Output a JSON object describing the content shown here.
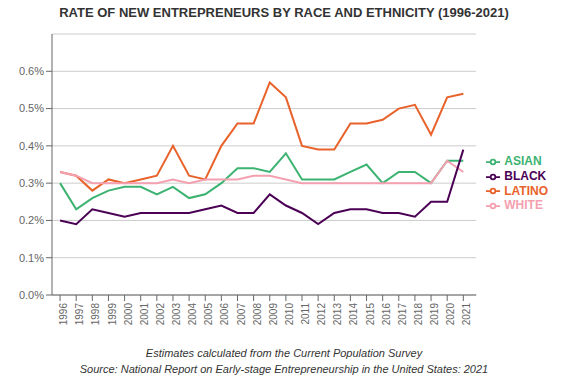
{
  "chart_data": {
    "type": "line",
    "title": "RATE OF NEW ENTREPRENEURS BY RACE AND ETHNICITY (1996-2021)",
    "x": [
      1996,
      1997,
      1998,
      1999,
      2000,
      2001,
      2002,
      2003,
      2004,
      2005,
      2006,
      2007,
      2008,
      2009,
      2010,
      2011,
      2012,
      2013,
      2014,
      2015,
      2016,
      2017,
      2018,
      2019,
      2020,
      2021
    ],
    "series": [
      {
        "name": "LATINO",
        "color": "#E8622A",
        "values": [
          0.0033,
          0.0032,
          0.0028,
          0.0031,
          0.003,
          0.0031,
          0.0032,
          0.004,
          0.0032,
          0.0031,
          0.004,
          0.0046,
          0.0046,
          0.0057,
          0.0053,
          0.004,
          0.0039,
          0.0039,
          0.0046,
          0.0046,
          0.0047,
          0.005,
          0.0051,
          0.0043,
          0.0053,
          0.0054
        ]
      },
      {
        "name": "ASIAN",
        "color": "#3CB371",
        "values": [
          0.003,
          0.0023,
          0.0026,
          0.0028,
          0.0029,
          0.0029,
          0.0027,
          0.0029,
          0.0026,
          0.0027,
          0.003,
          0.0034,
          0.0034,
          0.0033,
          0.0038,
          0.0031,
          0.0031,
          0.0031,
          0.0033,
          0.0035,
          0.003,
          0.0033,
          0.0033,
          0.003,
          0.0036,
          0.0036
        ]
      },
      {
        "name": "WHITE",
        "color": "#F4A0B0",
        "values": [
          0.0033,
          0.0032,
          0.003,
          0.003,
          0.003,
          0.003,
          0.003,
          0.0031,
          0.003,
          0.0031,
          0.0031,
          0.0031,
          0.0032,
          0.0032,
          0.0031,
          0.003,
          0.003,
          0.003,
          0.003,
          0.003,
          0.003,
          0.003,
          0.003,
          0.003,
          0.0036,
          0.0033
        ]
      },
      {
        "name": "BLACK",
        "color": "#4B0055",
        "values": [
          0.002,
          0.0019,
          0.0023,
          0.0022,
          0.0021,
          0.0022,
          0.0022,
          0.0022,
          0.0022,
          0.0023,
          0.0024,
          0.0022,
          0.0022,
          0.0027,
          0.0024,
          0.0022,
          0.0019,
          0.0022,
          0.0023,
          0.0023,
          0.0022,
          0.0022,
          0.0021,
          0.0025,
          0.0025,
          0.0039
        ]
      }
    ],
    "xlim": [
      1995.5,
      2021.8
    ],
    "xticks": [
      1996,
      1997,
      1998,
      1999,
      2000,
      2001,
      2002,
      2003,
      2004,
      2005,
      2006,
      2007,
      2008,
      2009,
      2010,
      2011,
      2012,
      2013,
      2014,
      2015,
      2016,
      2017,
      2018,
      2019,
      2020,
      2021
    ],
    "ylim": [
      0.0,
      0.007
    ],
    "yticks": [
      {
        "value": 0.0,
        "label": "0.0%"
      },
      {
        "value": 0.001,
        "label": "0.1%"
      },
      {
        "value": 0.002,
        "label": "0.2%"
      },
      {
        "value": 0.003,
        "label": "0.3%"
      },
      {
        "value": 0.004,
        "label": "0.4%"
      },
      {
        "value": 0.005,
        "label": "0.5%"
      },
      {
        "value": 0.006,
        "label": "0.6%"
      }
    ],
    "grid": true,
    "legend": "right",
    "annotations": [
      "Estimates calculated from the Current Population Survey",
      "Source: National Report on Early-stage Entrepreneurship in the United States: 2021"
    ]
  }
}
